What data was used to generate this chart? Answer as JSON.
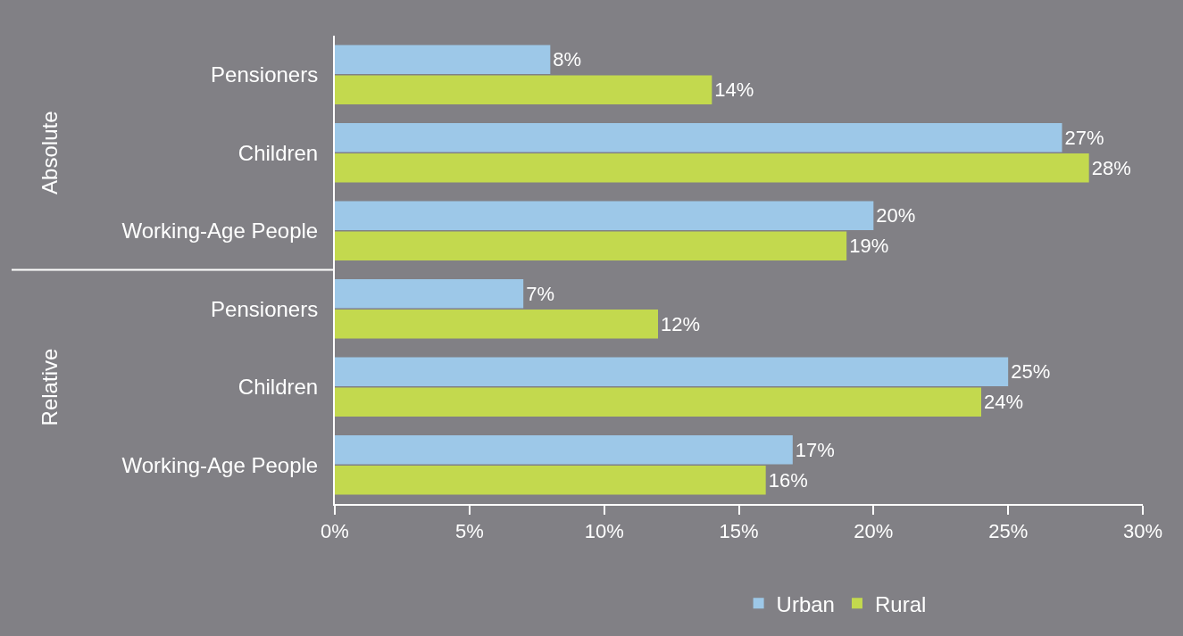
{
  "chart_data": {
    "type": "bar",
    "orientation": "horizontal",
    "categories": [
      "Pensioners",
      "Children",
      "Working-Age People",
      "Pensioners",
      "Children",
      "Working-Age People"
    ],
    "series": [
      {
        "name": "Urban",
        "color": "#9dc8e8",
        "values": [
          8,
          27,
          20,
          7,
          25,
          17
        ],
        "value_labels": [
          "8%",
          "27%",
          "20%",
          "7%",
          "25%",
          "17%"
        ]
      },
      {
        "name": "Rural",
        "color": "#c3d94e",
        "values": [
          14,
          28,
          19,
          12,
          24,
          16
        ],
        "value_labels": [
          "14%",
          "28%",
          "19%",
          "12%",
          "24%",
          "16%"
        ]
      }
    ],
    "xlim": [
      0,
      30
    ],
    "xticks": [
      {
        "value": 0,
        "label": "0%"
      },
      {
        "value": 5,
        "label": "5%"
      },
      {
        "value": 10,
        "label": "10%"
      },
      {
        "value": 15,
        "label": "15%"
      },
      {
        "value": 20,
        "label": "20%"
      },
      {
        "value": 25,
        "label": "25%"
      },
      {
        "value": 30,
        "label": "30%"
      }
    ],
    "annotations": [
      "Absolute",
      "Relative"
    ],
    "grid": false,
    "legend": "bottom"
  }
}
